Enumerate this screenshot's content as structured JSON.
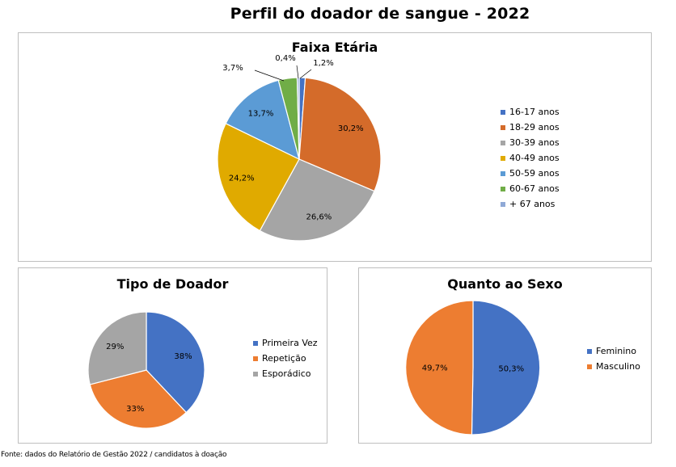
{
  "title": "Perfil do doador de sangue - 2022",
  "source": "Fonte: dados do Relatório de Gestão 2022 / candidatos à doação",
  "chart_data": [
    {
      "type": "pie",
      "title": "Faixa Etária",
      "legend_position": "right",
      "categories": [
        "16-17 anos",
        "18-29 anos",
        "30-39 anos",
        "40-49 anos",
        "50-59 anos",
        "60-67 anos",
        "+ 67 anos"
      ],
      "values": [
        1.2,
        30.2,
        26.6,
        24.2,
        13.7,
        3.7,
        0.4
      ],
      "labels": [
        "1,2%",
        "30,2%",
        "26,6%",
        "24,2%",
        "13,7%",
        "3,7%",
        "0,4%"
      ],
      "colors": [
        "#4472c4",
        "#d46b2a",
        "#a5a5a5",
        "#e0aa00",
        "#5b9bd5",
        "#70ad47",
        "#8fa9d6"
      ]
    },
    {
      "type": "pie",
      "title": "Tipo de Doador",
      "legend_position": "right",
      "categories": [
        "Primeira Vez",
        "Repetição",
        "Esporádico"
      ],
      "values": [
        38,
        33,
        29
      ],
      "labels": [
        "38%",
        "33%",
        "29%"
      ],
      "colors": [
        "#4472c4",
        "#ed7d31",
        "#a5a5a5"
      ]
    },
    {
      "type": "pie",
      "title": "Quanto ao Sexo",
      "legend_position": "right",
      "categories": [
        "Feminino",
        "Masculino"
      ],
      "values": [
        50.3,
        49.7
      ],
      "labels": [
        "50,3%",
        "49,7%"
      ],
      "colors": [
        "#4472c4",
        "#ed7d31"
      ]
    }
  ]
}
